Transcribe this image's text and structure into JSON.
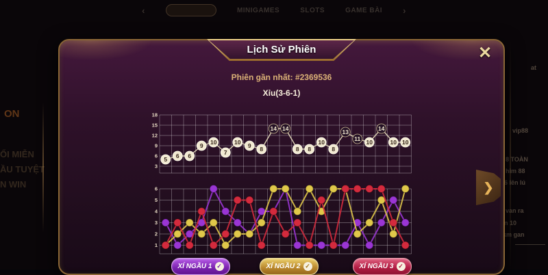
{
  "ui": {
    "nav": {
      "prev": "‹",
      "next": "›",
      "items": [
        "MINIGAMES",
        "SLOTS",
        "GAME BÀI"
      ]
    },
    "modal": {
      "title": "Lịch Sử Phiên",
      "close_label": "✕",
      "latest_session": "Phiên gần nhất: #2369536",
      "latest_result": "Xỉu(3-6-1)"
    },
    "dice_buttons": [
      {
        "label": "XÍ NGẦU 1",
        "check": "✓",
        "color": "#8b2fc9"
      },
      {
        "label": "XÍ NGẦU 2",
        "check": "✓",
        "color": "#c9962e"
      },
      {
        "label": "XÍ NGẦU 3",
        "check": "✓",
        "color": "#c01c40"
      }
    ],
    "expand_arrow": "❯",
    "colors": {
      "accent_gold": "#d9a74a",
      "marker_light": "#f2ead2",
      "marker_dark": "#251226"
    },
    "background": {
      "left_logo_fragment": "ON",
      "left_banner_fragments": [
        "ỔI MIỄN",
        "ẦU TUYỆT",
        "N WIN"
      ],
      "right_panel_fragments": [
        "at",
        "vip88",
        "8 TOÀN",
        "him 88",
        "6 lên lú",
        "van ra",
        "n 10",
        "km gan"
      ]
    }
  },
  "chart_data": [
    {
      "type": "line",
      "name": "session-totals",
      "x": [
        1,
        2,
        3,
        4,
        5,
        6,
        7,
        8,
        9,
        10,
        11,
        12,
        13,
        14,
        15,
        16,
        17,
        18,
        19,
        20,
        21
      ],
      "values": [
        5,
        6,
        6,
        9,
        10,
        7,
        10,
        9,
        8,
        14,
        14,
        8,
        8,
        10,
        8,
        13,
        11,
        10,
        14,
        10,
        10
      ],
      "yticks": [
        18,
        15,
        12,
        9,
        6,
        3
      ],
      "ymax": 18,
      "ylim": [
        1,
        19
      ],
      "grid": true,
      "dark_marker_threshold": 11,
      "title": "",
      "xlabel": "",
      "ylabel": ""
    },
    {
      "type": "line",
      "name": "dice-values",
      "x": [
        1,
        2,
        3,
        4,
        5,
        6,
        7,
        8,
        9,
        10,
        11,
        12,
        13,
        14,
        15,
        16,
        17,
        18,
        19,
        20,
        21
      ],
      "series": [
        {
          "name": "XÍ NGẦU 1",
          "color": "#9a35d4",
          "values": [
            3,
            1,
            2,
            3,
            6,
            4,
            3,
            2,
            4,
            4,
            6,
            1,
            1,
            1,
            1,
            1,
            3,
            1,
            3,
            5,
            3
          ]
        },
        {
          "name": "XÍ NGẦU 2",
          "color": "#e0c84a",
          "values": [
            1,
            2,
            3,
            2,
            3,
            1,
            2,
            2,
            3,
            6,
            6,
            4,
            6,
            4,
            6,
            6,
            2,
            3,
            5,
            2,
            6
          ]
        },
        {
          "name": "XÍ NGẦU 3",
          "color": "#d42a3d",
          "values": [
            1,
            3,
            1,
            4,
            1,
            2,
            5,
            5,
            1,
            4,
            2,
            3,
            1,
            5,
            1,
            6,
            6,
            6,
            6,
            3,
            1
          ]
        }
      ],
      "yticks": [
        6,
        5,
        4,
        3,
        2,
        1
      ],
      "ymax": 6,
      "ylim": [
        0,
        6
      ],
      "grid": true,
      "legend_position": "none",
      "title": "",
      "xlabel": "",
      "ylabel": ""
    }
  ]
}
